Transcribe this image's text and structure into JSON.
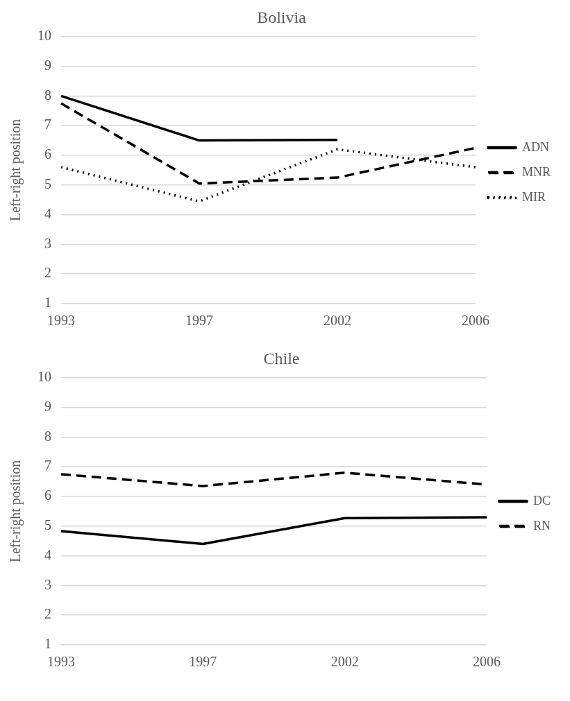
{
  "chart_data": [
    {
      "type": "line",
      "title": "Bolivia",
      "ylabel": "Left-right position",
      "categories": [
        "1993",
        "1997",
        "2002",
        "2006"
      ],
      "ylim": [
        1,
        10
      ],
      "yticks": [
        1,
        2,
        3,
        4,
        5,
        6,
        7,
        8,
        9,
        10
      ],
      "grid": "y",
      "legend": "right",
      "marker": "none",
      "series": [
        {
          "name": "ADN",
          "color": "#000000",
          "line_style": "solid",
          "values": [
            8.0,
            6.5,
            6.52,
            null
          ]
        },
        {
          "name": "MNR",
          "color": "#000000",
          "line_style": "dashed",
          "values": [
            7.75,
            5.05,
            5.25,
            6.25
          ]
        },
        {
          "name": "MIR",
          "color": "#000000",
          "line_style": "dotted",
          "values": [
            5.6,
            4.45,
            6.2,
            5.6
          ]
        }
      ]
    },
    {
      "type": "line",
      "title": "Chile",
      "ylabel": "Left-right position",
      "categories": [
        "1993",
        "1997",
        "2002",
        "2006"
      ],
      "ylim": [
        1,
        10
      ],
      "yticks": [
        1,
        2,
        3,
        4,
        5,
        6,
        7,
        8,
        9,
        10
      ],
      "grid": "y",
      "legend": "right",
      "marker": "none",
      "series": [
        {
          "name": "DC",
          "color": "#000000",
          "line_style": "solid",
          "values": [
            4.83,
            4.4,
            5.27,
            5.3
          ]
        },
        {
          "name": "RN",
          "color": "#000000",
          "line_style": "dashed",
          "values": [
            6.75,
            6.35,
            6.8,
            6.4
          ]
        }
      ]
    }
  ]
}
